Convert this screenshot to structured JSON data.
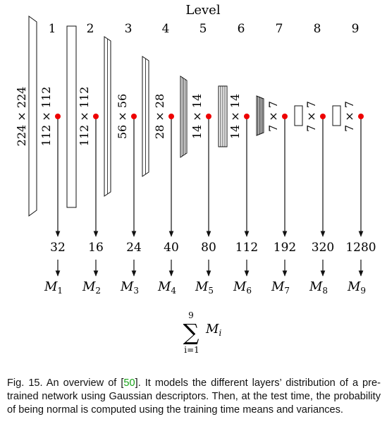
{
  "diagram": {
    "title": "Level",
    "levels": [
      {
        "num": "1",
        "input_size": "224 × 224",
        "size": "112 × 112",
        "channels": "32",
        "m": "M",
        "sub": "1"
      },
      {
        "num": "2",
        "size": "112 × 112",
        "channels": "16",
        "m": "M",
        "sub": "2"
      },
      {
        "num": "3",
        "size": "56 × 56",
        "channels": "24",
        "m": "M",
        "sub": "3"
      },
      {
        "num": "4",
        "size": "28 × 28",
        "channels": "40",
        "m": "M",
        "sub": "4"
      },
      {
        "num": "5",
        "size": "14 × 14",
        "channels": "80",
        "m": "M",
        "sub": "5"
      },
      {
        "num": "6",
        "size": "14 × 14",
        "channels": "112",
        "m": "M",
        "sub": "6"
      },
      {
        "num": "7",
        "size": "7 × 7",
        "channels": "192",
        "m": "M",
        "sub": "7"
      },
      {
        "num": "8",
        "size": "7 × 7",
        "channels": "320",
        "m": "M",
        "sub": "8"
      },
      {
        "num": "9",
        "size": "7 × 7",
        "channels": "1280",
        "m": "M",
        "sub": "9"
      }
    ],
    "sum": {
      "upper": "9",
      "lower": "i=1",
      "symbol": "∑",
      "term": "M",
      "term_sub": "i"
    },
    "colors": {
      "point": "#ee0000",
      "line": "#111111"
    }
  },
  "caption": {
    "prefix": "Fig. 15. An overview of [",
    "ref": "50",
    "suffix": "]. It models the different layers’ distribution of a pre-trained network using Gaussian descriptors. Then, at the test time, the probability of being normal is computed using the training time means and variances."
  }
}
